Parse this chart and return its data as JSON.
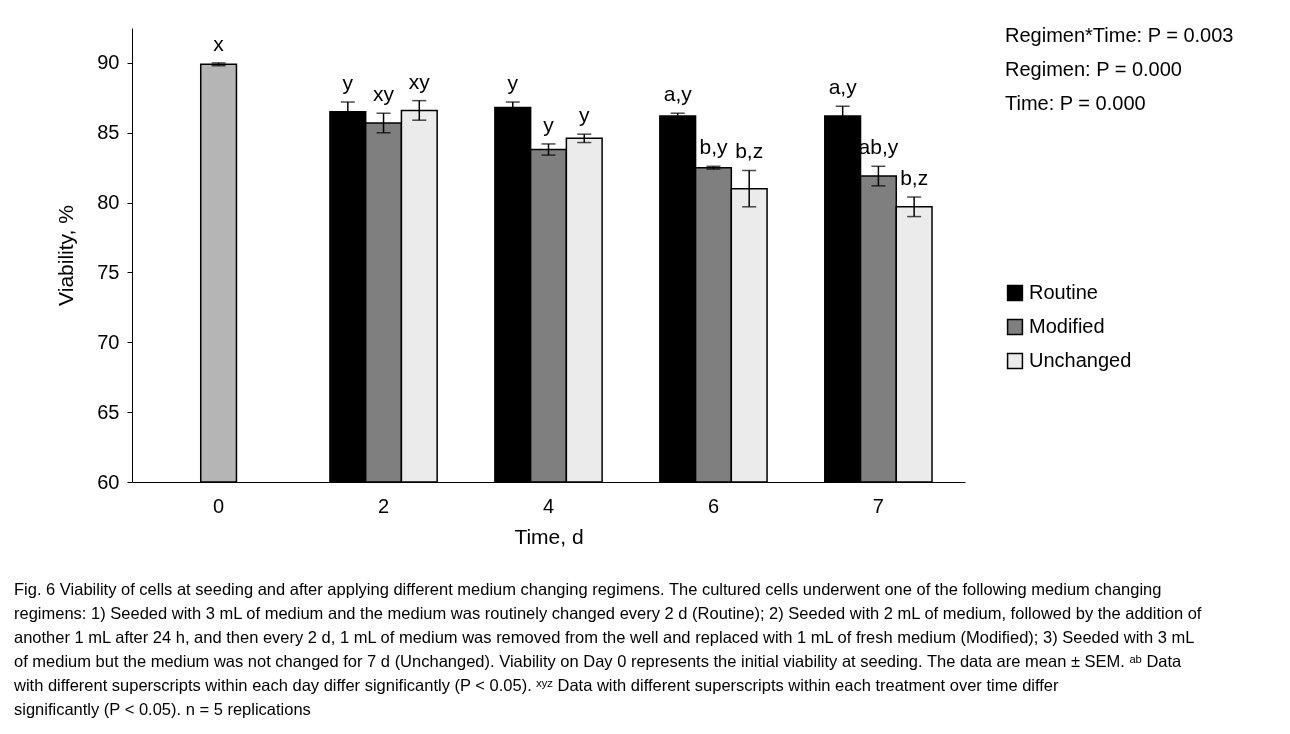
{
  "chart_data": {
    "type": "bar",
    "ylabel": "Viability, %",
    "xlabel": "Time, d",
    "categories": [
      "0",
      "2",
      "4",
      "6",
      "7"
    ],
    "series": [
      {
        "name": "Routine",
        "color": "#000000",
        "values": [
          null,
          86.5,
          86.8,
          86.2,
          86.2
        ],
        "errors": [
          null,
          0.7,
          0.4,
          0.2,
          0.7
        ],
        "value_labels": [
          null,
          "y",
          "y",
          "a,y",
          "a,y"
        ]
      },
      {
        "name": "Modified",
        "color": "#7f7f7f",
        "values": [
          null,
          85.7,
          83.8,
          82.5,
          81.9
        ],
        "errors": [
          null,
          0.7,
          0.4,
          0.1,
          0.7
        ],
        "value_labels": [
          null,
          "xy",
          "y",
          "b,y",
          "ab,y"
        ]
      },
      {
        "name": "Unchanged",
        "color": "#ebebeb",
        "values": [
          null,
          86.6,
          84.6,
          81.0,
          79.7
        ],
        "errors": [
          null,
          0.7,
          0.3,
          1.3,
          0.7
        ],
        "value_labels": [
          null,
          "xy",
          "y",
          "b,z",
          "b,z"
        ]
      },
      {
        "color": "#b5b5b5",
        "values": [
          89.9,
          null,
          null,
          null,
          null
        ],
        "errors": [
          0.1,
          null,
          null,
          null,
          null
        ],
        "value_labels": [
          "x",
          null,
          null,
          null,
          null
        ]
      }
    ],
    "ylim": [
      60,
      92.5
    ],
    "yticks": [
      60,
      65,
      70,
      75,
      80,
      85,
      90
    ],
    "grid": false,
    "legend": "right",
    "annotations": [
      "Regimen*Time: P = 0.003",
      "Regimen: P = 0.000",
      "Time: P = 0.000",
      "Fig. 6 Viability of cells at seeding and after applying different medium changing regimens. The cultured cells underwent one of the following medium changing regimens: 1) Seeded with 3 mL of medium and the medium was routinely changed every 2 d (Routine); 2) Seeded with 2 mL of medium, followed by the addition of another 1 mL after 24 h, and then every 2 d, 1 mL of medium was removed from the well and replaced with 1 mL of fresh medium (Modified); 3) Seeded with 3 mL of medium but the medium was not changed for 7 d (Unchanged). Viability on Day 0 represents the initial viability at seeding. The data are mean ± SEM. ᵃᵇ Data with different superscripts within each day differ significantly (P < 0.05). ˣʸᶻ Data with different superscripts within each treatment over time differ significantly (P < 0.05). n = 5 replications"
    ]
  }
}
